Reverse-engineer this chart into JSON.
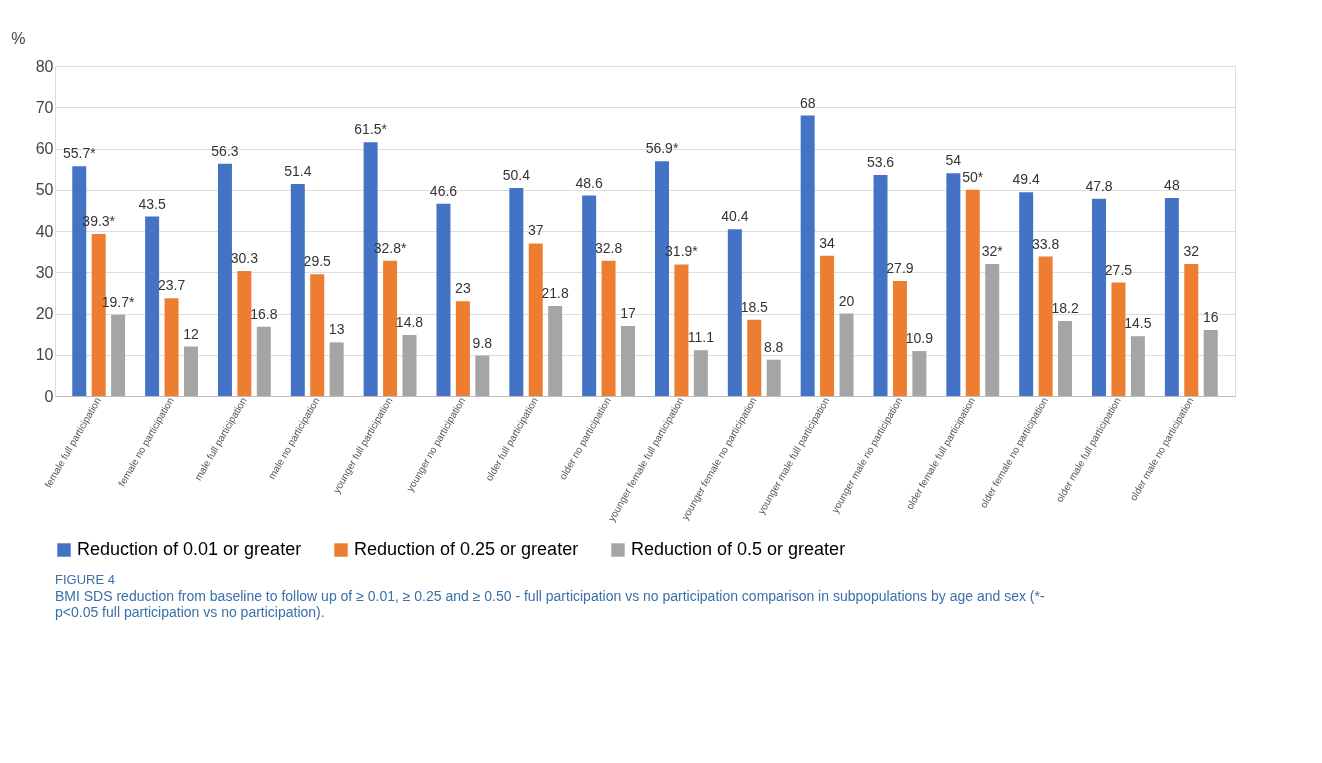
{
  "chart_data": {
    "type": "bar",
    "categories": [
      "female full participation",
      "female no participation",
      "male full participation",
      "male no participation",
      "younger full participation",
      "younger no participation",
      "older full participation",
      "older no participation",
      "younger female full participation",
      "younger female no participation",
      "younger male full participation",
      "younger male no participation",
      "older female full participation",
      "older female no participation",
      "older male full participation",
      "older male no participation"
    ],
    "series": [
      {
        "name": "Reduction of 0.01 or greater",
        "color": "#4472c4",
        "values": [
          55.7,
          43.5,
          56.3,
          51.4,
          61.5,
          46.6,
          50.4,
          48.6,
          56.9,
          40.4,
          68,
          53.6,
          54,
          49.4,
          47.8,
          48
        ],
        "value_labels": [
          "55.7*",
          "43.5",
          "56.3",
          "51.4",
          "61.5*",
          "46.6",
          "50.4",
          "48.6",
          "56.9*",
          "40.4",
          "68",
          "53.6",
          "54",
          "49.4",
          "47.8",
          "48"
        ]
      },
      {
        "name": "Reduction of 0.25 or greater",
        "color": "#ed7d31",
        "values": [
          39.3,
          23.7,
          30.3,
          29.5,
          32.8,
          23,
          37,
          32.8,
          31.9,
          18.5,
          34,
          27.9,
          50,
          33.8,
          27.5,
          32
        ],
        "value_labels": [
          "39.3*",
          "23.7",
          "30.3",
          "29.5",
          "32.8*",
          "23",
          "37",
          "32.8",
          "31.9*",
          "18.5",
          "34",
          "27.9",
          "50*",
          "33.8",
          "27.5",
          "32"
        ]
      },
      {
        "name": "Reduction of 0.5 or greater",
        "color": "#a5a5a5",
        "values": [
          19.7,
          12,
          16.8,
          13,
          14.8,
          9.8,
          21.8,
          17,
          11.1,
          8.8,
          20,
          10.9,
          32,
          18.2,
          14.5,
          16
        ],
        "value_labels": [
          "19.7*",
          "12",
          "16.8",
          "13",
          "14.8",
          "9.8",
          "21.8",
          "17",
          "11.1",
          "8.8",
          "20",
          "10.9",
          "32*",
          "18.2",
          "14.5",
          "16"
        ]
      }
    ],
    "ylabel": "%",
    "ylim": [
      0,
      80
    ],
    "yticks": [
      0,
      10,
      20,
      30,
      40,
      50,
      60,
      70,
      80
    ],
    "grid": "y",
    "legend": "bottom",
    "annotations": [
      "FIGURE 4",
      "BMI SDS reduction from baseline to follow up of ≥ 0.01, ≥ 0.25 and ≥ 0.50 - full participation vs no participation comparison in subpopulations by age and sex (*- p<0.05 full participation vs no participation)."
    ]
  }
}
